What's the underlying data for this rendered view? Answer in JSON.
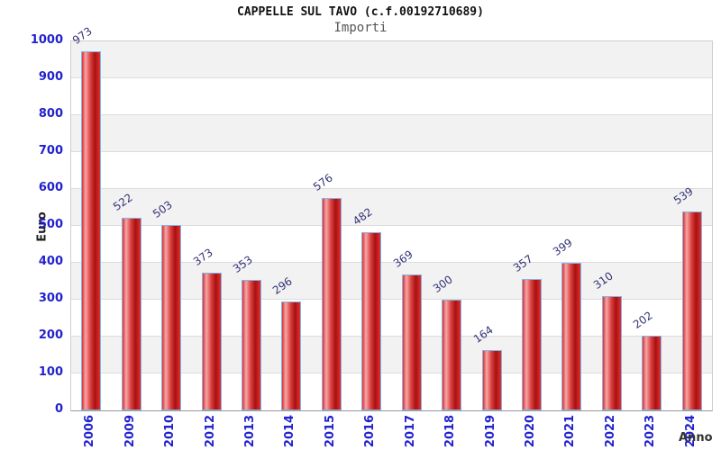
{
  "chart_data": {
    "type": "bar",
    "title": "CAPPELLE SUL TAVO (c.f.00192710689)",
    "subtitle": "Importi",
    "xlabel": "Anno",
    "ylabel": "Euro",
    "categories": [
      "2006",
      "2009",
      "2010",
      "2012",
      "2013",
      "2014",
      "2015",
      "2016",
      "2017",
      "2018",
      "2019",
      "2020",
      "2021",
      "2022",
      "2023",
      "2024"
    ],
    "values": [
      973,
      522,
      503,
      373,
      353,
      296,
      576,
      482,
      369,
      300,
      164,
      357,
      399,
      310,
      202,
      539
    ],
    "ylim": [
      0,
      1000
    ],
    "ytick_step": 100,
    "yticks": [
      0,
      100,
      200,
      300,
      400,
      500,
      600,
      700,
      800,
      900,
      1000
    ],
    "grid": true,
    "legend": "none",
    "colors": {
      "bar_fill_main": "#d92626",
      "bar_fill_light": "#f3a8a8",
      "bar_fill_dark": "#a81111",
      "bar_border": "#82b4e8",
      "axis_tick_text": "#2222cc",
      "value_label_text": "#333377",
      "band_fill": "#f2f2f2",
      "gridline": "#dcdcdc",
      "title_text": "#111111",
      "subtitle_text": "#555555",
      "axis_title_text": "#222222"
    }
  }
}
